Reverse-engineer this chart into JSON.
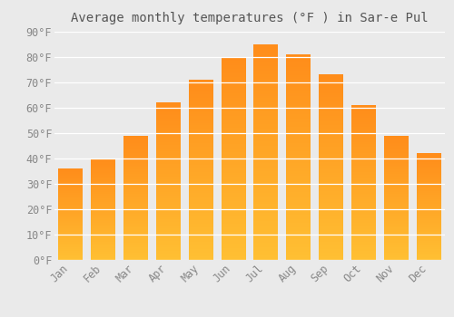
{
  "title": "Average monthly temperatures (°F ) in Sar-e Pul",
  "months": [
    "Jan",
    "Feb",
    "Mar",
    "Apr",
    "May",
    "Jun",
    "Jul",
    "Aug",
    "Sep",
    "Oct",
    "Nov",
    "Dec"
  ],
  "values": [
    36,
    40,
    49,
    62,
    71,
    80,
    85,
    81,
    73,
    61,
    49,
    42
  ],
  "bar_color_top": "#FFA500",
  "bar_color_bottom": "#FFD060",
  "background_color": "#EAEAEA",
  "plot_bg_color": "#EAEAEA",
  "grid_color": "#FFFFFF",
  "text_color": "#888888",
  "title_color": "#555555",
  "ylim": [
    0,
    90
  ],
  "yticks": [
    0,
    10,
    20,
    30,
    40,
    50,
    60,
    70,
    80,
    90
  ],
  "ytick_labels": [
    "0°F",
    "10°F",
    "20°F",
    "30°F",
    "40°F",
    "50°F",
    "60°F",
    "70°F",
    "80°F",
    "90°F"
  ],
  "title_fontsize": 10,
  "tick_fontsize": 8.5,
  "figsize": [
    5.0,
    3.5
  ],
  "dpi": 100
}
